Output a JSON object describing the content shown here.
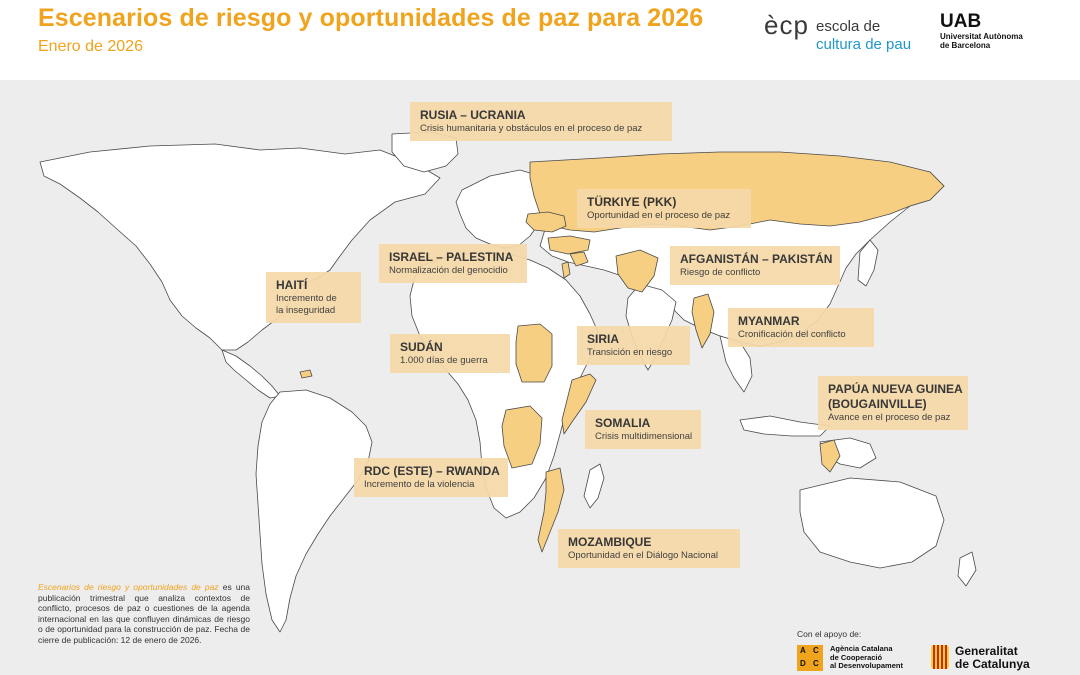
{
  "header": {
    "title": "Escenarios de riesgo y oportunidades de paz para 2026",
    "subtitle": "Enero de 2026"
  },
  "logos": {
    "ecp_mark": "ècp",
    "ecp_line1": "escola de",
    "ecp_line2": "cultura de pau",
    "uab_big": "UAB",
    "uab_line1": "Universitat Autònoma",
    "uab_line2": "de Barcelona"
  },
  "map": {
    "land_color": "#ffffff",
    "highlight_color": "#f7cf83",
    "water_color": "#ededed",
    "scenarios": [
      {
        "title": "RUSIA – UCRANIA",
        "desc": "Crisis humanitaria y obstáculos en el proceso de paz"
      },
      {
        "title": "TÜRKIYE (PKK)",
        "desc": "Oportunidad en el proceso de paz"
      },
      {
        "title": "ISRAEL – PALESTINA",
        "desc": "Normalización del genocidio"
      },
      {
        "title": "AFGANISTÁN – PAKISTÁN",
        "desc": "Riesgo de conflicto"
      },
      {
        "title": "HAITÍ",
        "desc": "Incremento de la inseguridad"
      },
      {
        "title": "MYANMAR",
        "desc": "Cronificación del conflicto"
      },
      {
        "title": "SUDÁN",
        "desc": "1.000 días de guerra"
      },
      {
        "title": "SIRIA",
        "desc": "Transición en riesgo"
      },
      {
        "title": "PAPÚA NUEVA GUINEA (BOUGAINVILLE)",
        "desc": "Avance en el proceso de paz"
      },
      {
        "title": "SOMALIA",
        "desc": "Crisis multidimensional"
      },
      {
        "title": "RDC (ESTE) – RWANDA",
        "desc": "Incremento de la violencia"
      },
      {
        "title": "MOZAMBIQUE",
        "desc": "Oportunidad en el Diálogo Nacional"
      }
    ]
  },
  "haiti_lines": [
    "Incremento de",
    "la inseguridad"
  ],
  "png_lines": [
    "PAPÚA NUEVA GUINEA",
    "(BOUGAINVILLE)"
  ],
  "footer": {
    "note_title": "Escenarios de riesgo y oportunidades de paz",
    "note_body": "es una publicación trimestral que analiza contextos de conflicto, procesos de paz o cuestiones de la agenda internacional en las que confluyen dinámicas de riesgo o de oportunidad para la construcción de paz. Fecha de cierre de publicación: 12 de enero de 2026.",
    "support_label": "Con el apoyo de:",
    "acdc_line1": "Agència Catalana",
    "acdc_line2": "de Cooperació",
    "acdc_line3": "al Desenvolupament",
    "acdc_letters": [
      "A",
      "C",
      "D",
      "C"
    ],
    "gen_line1": "Generalitat",
    "gen_line2": "de Catalunya"
  }
}
